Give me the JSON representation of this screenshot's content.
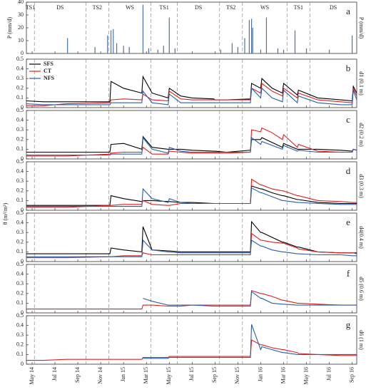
{
  "ylabel": "θ (m³/m³)",
  "chart_data": [
    {
      "type": "bar",
      "label": "a",
      "ylabel": "P (mm/d)",
      "color": "#4a74a8",
      "ylim": [
        0,
        40
      ],
      "yticks": [
        0,
        10,
        20,
        30,
        40
      ],
      "seasons": [
        {
          "label": "TS1",
          "start": -0.5
        },
        {
          "label": "DS",
          "start": 0.2
        },
        {
          "label": "TS2",
          "start": 4.7
        },
        {
          "label": "WS",
          "start": 6.7
        },
        {
          "label": "TS1",
          "start": 10.4
        },
        {
          "label": "DS",
          "start": 12.7
        },
        {
          "label": "TS2",
          "start": 16.4
        },
        {
          "label": "WS",
          "start": 18.4
        },
        {
          "label": "TS1",
          "start": 22.3
        },
        {
          "label": "DS",
          "start": 24.3
        }
      ],
      "x": [
        3.1,
        5.5,
        6.6,
        6.9,
        7.1,
        7.4,
        8,
        8.5,
        9.7,
        10.2,
        11,
        11.5,
        12,
        12.5,
        16.5,
        17.5,
        18,
        18.6,
        19,
        19.2,
        19.3,
        20,
        20.5,
        21.5,
        22,
        23,
        24,
        26,
        28
      ],
      "values": [
        12,
        5,
        14,
        18,
        19,
        8,
        6,
        5,
        38,
        4,
        3,
        6,
        28,
        4,
        3,
        8,
        5,
        12,
        26,
        27,
        20,
        3,
        28,
        4,
        3,
        18,
        4,
        3,
        14
      ]
    },
    {
      "type": "line",
      "label": "b",
      "ylabel": "d1 (0.1 m)",
      "legend": "upper left",
      "ylim": [
        0,
        0.5
      ],
      "yticks": [
        0,
        0.1,
        0.2,
        0.3,
        0.4,
        0.5
      ],
      "x": [
        -0.5,
        1,
        3,
        6.8,
        6.9,
        8,
        9.6,
        9.7,
        10.5,
        11.9,
        12,
        13,
        14,
        15.9,
        16,
        17,
        19.1,
        19.2,
        20,
        20.1,
        21,
        21.9,
        22,
        23.2,
        23.3,
        25,
        27,
        28,
        28.1,
        28.4
      ],
      "series": [
        {
          "name": "SFS",
          "color": "#000000",
          "values": [
            0.07,
            0.06,
            0.06,
            0.06,
            0.27,
            0.2,
            0.15,
            0.32,
            0.15,
            0.1,
            0.2,
            0.12,
            0.1,
            0.09,
            0.08,
            0.08,
            0.09,
            0.25,
            0.2,
            0.3,
            0.2,
            0.15,
            0.25,
            0.13,
            0.18,
            0.1,
            0.08,
            0.07,
            0.22,
            0.15
          ]
        },
        {
          "name": "CT",
          "color": "#e02020",
          "values": [
            0.02,
            0.02,
            0.04,
            0.05,
            0.08,
            0.09,
            0.08,
            0.14,
            0.08,
            0.07,
            0.17,
            0.09,
            0.08,
            0.08,
            0.08,
            0.08,
            0.08,
            0.2,
            0.15,
            0.25,
            0.17,
            0.12,
            0.2,
            0.1,
            0.15,
            0.08,
            0.06,
            0.05,
            0.2,
            0.12
          ]
        },
        {
          "name": "NFS",
          "color": "#2a5ea8",
          "values": [
            0.04,
            0.03,
            0.03,
            0.03,
            0.05,
            0.05,
            0.05,
            0.17,
            0.05,
            0.03,
            0.14,
            0.05,
            0.05,
            0.05,
            0.05,
            0.05,
            0.05,
            0.2,
            0.1,
            0.2,
            0.1,
            0.06,
            0.18,
            0.05,
            0.12,
            0.05,
            0.03,
            0.03,
            0.18,
            0.08
          ]
        }
      ]
    },
    {
      "type": "line",
      "label": "c",
      "ylabel": "d2 (0.2 m)",
      "ylim": [
        0,
        0.5
      ],
      "yticks": [
        0,
        0.1,
        0.2,
        0.3,
        0.4,
        0.5
      ],
      "x": [
        -0.5,
        1,
        3,
        6.8,
        6.9,
        8,
        9.6,
        9.7,
        10.5,
        11.9,
        12,
        13,
        14,
        15.9,
        16,
        17,
        19.1,
        19.2,
        20,
        20.1,
        21,
        21.9,
        22,
        23.2,
        23.3,
        25,
        27,
        28,
        28.1,
        28.4
      ],
      "series": [
        {
          "color": "#000000",
          "values": [
            0.07,
            0.07,
            0.07,
            0.07,
            0.15,
            0.16,
            0.1,
            0.23,
            0.12,
            0.1,
            0.1,
            0.1,
            0.09,
            0.08,
            0.08,
            0.07,
            0.09,
            0.2,
            0.2,
            0.22,
            0.17,
            0.12,
            0.16,
            0.1,
            0.1,
            0.1,
            0.09,
            0.08,
            0.1,
            0.09
          ]
        },
        {
          "color": "#e02020",
          "values": [
            0.03,
            0.03,
            0.03,
            0.05,
            0.06,
            0.07,
            0.07,
            0.12,
            0.05,
            0.05,
            0.08,
            0.07,
            0.06,
            0.06,
            0.06,
            0.06,
            0.07,
            0.3,
            0.28,
            0.32,
            0.27,
            0.2,
            0.25,
            0.12,
            0.15,
            0.08,
            0.07,
            0.07,
            0.1,
            0.09
          ]
        },
        {
          "color": "#2a5ea8",
          "values": [
            0.04,
            0.04,
            0.04,
            0.04,
            0.05,
            0.05,
            0.05,
            0.22,
            0.1,
            0.06,
            0.12,
            0.08,
            0.07,
            0.07,
            0.07,
            0.07,
            0.07,
            0.22,
            0.15,
            0.18,
            0.14,
            0.1,
            0.14,
            0.08,
            0.09,
            0.07,
            0.07,
            0.07,
            0.1,
            0.09
          ]
        }
      ]
    },
    {
      "type": "line",
      "label": "d",
      "ylabel": "d3 (0.3 m)",
      "ylim": [
        0,
        0.5
      ],
      "yticks": [
        0,
        0.1,
        0.2,
        0.3,
        0.4,
        0.5
      ],
      "x": [
        -0.5,
        1,
        3,
        6.8,
        6.9,
        8,
        9.6,
        9.7,
        10.5,
        11.9,
        12,
        13,
        14,
        15.9,
        16,
        17,
        19.1,
        19.2,
        20,
        20.1,
        21,
        21.9,
        22,
        23.2,
        23.3,
        25,
        27,
        28,
        28.1,
        28.4
      ],
      "series": [
        {
          "color": "#000000",
          "values": [
            0.05,
            0.05,
            0.05,
            0.05,
            0.15,
            0.12,
            0.09,
            0.1,
            0.1,
            0.09,
            0.09,
            0.08,
            0.08,
            0.07,
            0.07,
            0.07,
            0.07,
            0.25,
            0.22,
            0.22,
            0.18,
            0.15,
            0.15,
            0.11,
            0.11,
            0.08,
            0.07,
            0.07,
            0.07,
            0.07
          ]
        },
        {
          "color": "#e02020",
          "values": [
            0.03,
            0.03,
            0.03,
            0.05,
            0.05,
            0.06,
            0.06,
            0.1,
            0.06,
            0.05,
            0.05,
            0.07,
            0.07,
            0.07,
            0.07,
            0.07,
            0.07,
            0.32,
            0.26,
            0.26,
            0.22,
            0.2,
            0.2,
            0.15,
            0.15,
            0.1,
            0.09,
            0.08,
            0.08,
            0.08
          ]
        },
        {
          "color": "#2a5ea8",
          "values": [
            0.04,
            0.04,
            0.04,
            0.04,
            0.04,
            0.04,
            0.04,
            0.22,
            0.12,
            0.08,
            0.12,
            0.08,
            0.07,
            0.07,
            0.07,
            0.07,
            0.07,
            0.23,
            0.18,
            0.18,
            0.14,
            0.1,
            0.1,
            0.08,
            0.08,
            0.07,
            0.06,
            0.06,
            0.06,
            0.06
          ]
        }
      ]
    },
    {
      "type": "line",
      "label": "e",
      "ylabel": "d4(0.4 m)",
      "ylim": [
        0,
        0.5
      ],
      "yticks": [
        0,
        0.1,
        0.2,
        0.3,
        0.4,
        0.5
      ],
      "x": [
        -0.5,
        1,
        3,
        6.8,
        6.9,
        8,
        9.6,
        9.7,
        10.5,
        11.9,
        12,
        13,
        14,
        15.9,
        16,
        17,
        19.1,
        19.2,
        20,
        20.1,
        21,
        21.9,
        22,
        23.2,
        23.3,
        25,
        27,
        28,
        28.1,
        28.4
      ],
      "series": [
        {
          "color": "#000000",
          "values": [
            0.08,
            0.08,
            0.08,
            0.08,
            0.14,
            0.12,
            0.1,
            0.36,
            0.12,
            0.11,
            0.11,
            0.1,
            0.1,
            0.1,
            0.1,
            0.1,
            0.1,
            0.41,
            0.3,
            0.3,
            0.25,
            0.2,
            0.2,
            0.15,
            0.15,
            0.1,
            0.09,
            0.09,
            0.09,
            0.09
          ]
        },
        {
          "color": "#e02020",
          "values": [
            0.04,
            0.04,
            0.04,
            0.05,
            0.05,
            0.06,
            0.06,
            0.09,
            0.07,
            0.07,
            0.07,
            0.07,
            0.07,
            0.07,
            0.07,
            0.07,
            0.07,
            0.29,
            0.22,
            0.22,
            0.2,
            0.19,
            0.19,
            0.14,
            0.13,
            0.1,
            0.09,
            0.09,
            0.09,
            0.08
          ]
        },
        {
          "color": "#2a5ea8",
          "values": [
            0.05,
            0.05,
            0.05,
            0.05,
            0.05,
            0.05,
            0.05,
            0.22,
            0.12,
            0.1,
            0.1,
            0.09,
            0.09,
            0.09,
            0.09,
            0.09,
            0.09,
            0.22,
            0.16,
            0.16,
            0.12,
            0.1,
            0.1,
            0.08,
            0.08,
            0.07,
            0.07,
            0.06,
            0.06,
            0.06
          ]
        }
      ]
    },
    {
      "type": "line",
      "label": "f",
      "ylabel": "d5 (0.6 m)",
      "ylim": [
        0,
        0.5
      ],
      "yticks": [
        0,
        0.1,
        0.2,
        0.3,
        0.4,
        0.5
      ],
      "x": [
        -0.5,
        1,
        3,
        6.8,
        6.9,
        8,
        9.6,
        9.7,
        10.5,
        11.9,
        12,
        13,
        14,
        15.9,
        16,
        17,
        19.1,
        19.2,
        20,
        20.1,
        21,
        21.9,
        22,
        23.2,
        23.3,
        25,
        27,
        28,
        28.1,
        28.4
      ],
      "series": [
        {
          "color": "#e02020",
          "values": [
            0.04,
            0.04,
            0.04,
            0.04,
            0.04,
            0.04,
            0.04,
            0.08,
            0.08,
            0.07,
            0.07,
            0.07,
            0.08,
            0.08,
            0.08,
            0.08,
            0.08,
            0.23,
            0.2,
            0.2,
            0.17,
            0.13,
            0.13,
            0.1,
            0.1,
            0.09,
            0.08,
            0.08,
            0.08,
            0.08
          ]
        },
        {
          "color": "#2a5ea8",
          "values": [
            null,
            null,
            null,
            null,
            null,
            null,
            null,
            0.15,
            0.12,
            0.08,
            0.08,
            0.08,
            0.08,
            0.07,
            0.07,
            0.07,
            0.07,
            0.22,
            0.15,
            0.15,
            0.1,
            0.09,
            0.09,
            0.08,
            0.08,
            0.08,
            0.08,
            0.08,
            0.08,
            0.08
          ]
        }
      ]
    },
    {
      "type": "line",
      "label": "g",
      "ylabel": "d6 (1 m)",
      "ylim": [
        0,
        0.5
      ],
      "yticks": [
        0,
        0.1,
        0.2,
        0.3,
        0.4,
        0.5
      ],
      "xlim": [
        -0.5,
        28.4
      ],
      "xticks": [
        {
          "value": 0,
          "label": "May 14"
        },
        {
          "value": 2,
          "label": "Jul 14"
        },
        {
          "value": 4,
          "label": "Sep 14"
        },
        {
          "value": 6,
          "label": "Nov 14"
        },
        {
          "value": 8,
          "label": "Jan 15"
        },
        {
          "value": 10,
          "label": "Mar 15"
        },
        {
          "value": 12,
          "label": "May 15"
        },
        {
          "value": 14,
          "label": "Jul 15"
        },
        {
          "value": 16,
          "label": "Sep 15"
        },
        {
          "value": 18,
          "label": "Nov 15"
        },
        {
          "value": 20,
          "label": "Jan 16"
        },
        {
          "value": 22,
          "label": "Mar 16"
        },
        {
          "value": 24,
          "label": "May 16"
        },
        {
          "value": 26,
          "label": "Jul 16"
        },
        {
          "value": 28,
          "label": "Sep 16"
        }
      ],
      "x": [
        -0.5,
        1,
        3,
        6.8,
        6.9,
        8,
        9.6,
        9.7,
        10.5,
        11.9,
        12,
        13,
        14,
        15.9,
        16,
        17,
        19.1,
        19.2,
        20,
        20.1,
        21,
        21.9,
        22,
        23.2,
        23.3,
        25,
        27,
        28,
        28.1,
        28.4
      ],
      "series": [
        {
          "color": "#e02020",
          "values": [
            0.04,
            0.04,
            0.05,
            0.05,
            0.05,
            0.05,
            0.05,
            0.07,
            0.07,
            0.07,
            0.08,
            0.08,
            0.08,
            0.08,
            0.08,
            0.08,
            0.08,
            0.25,
            0.2,
            0.2,
            0.17,
            0.15,
            0.15,
            0.12,
            0.11,
            0.1,
            0.09,
            0.09,
            0.09,
            0.09
          ]
        },
        {
          "color": "#2a5ea8",
          "values": [
            null,
            null,
            null,
            null,
            null,
            null,
            null,
            0.06,
            0.06,
            0.06,
            0.07,
            0.07,
            0.07,
            0.07,
            0.07,
            0.07,
            0.07,
            0.41,
            0.15,
            0.18,
            0.15,
            0.12,
            0.12,
            0.1,
            0.1,
            0.1,
            0.1,
            0.1,
            0.1,
            0.1
          ]
        }
      ]
    }
  ]
}
